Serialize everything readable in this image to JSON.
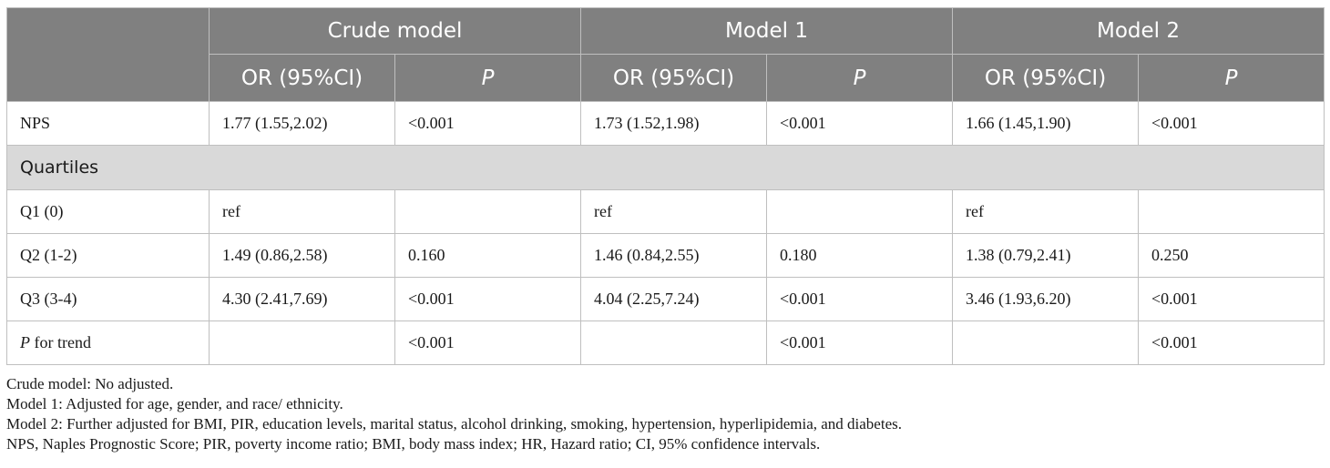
{
  "header": {
    "groups": [
      "Crude model",
      "Model 1",
      "Model 2"
    ],
    "sub": [
      "OR (95%CI)",
      "P",
      "OR (95%CI)",
      "P",
      "OR (95%CI)",
      "P"
    ]
  },
  "rows": {
    "nps": {
      "label": "NPS",
      "cells": [
        "1.77 (1.55,2.02)",
        "<0.001",
        "1.73 (1.52,1.98)",
        "<0.001",
        "1.66 (1.45,1.90)",
        "<0.001"
      ]
    },
    "quartiles": {
      "label": "Quartiles"
    },
    "q1": {
      "label": "Q1 (0)",
      "cells": [
        "ref",
        "",
        "ref",
        "",
        "ref",
        ""
      ]
    },
    "q2": {
      "label": "Q2 (1-2)",
      "cells": [
        "1.49 (0.86,2.58)",
        "0.160",
        "1.46 (0.84,2.55)",
        "0.180",
        "1.38 (0.79,2.41)",
        "0.250"
      ]
    },
    "q3": {
      "label": "Q3 (3-4)",
      "cells": [
        "4.30 (2.41,7.69)",
        "<0.001",
        "4.04 (2.25,7.24)",
        "<0.001",
        "3.46 (1.93,6.20)",
        "<0.001"
      ]
    },
    "trend": {
      "label_p": "P",
      "label_rest": " for trend",
      "cells": [
        "",
        "<0.001",
        "",
        "<0.001",
        "",
        "<0.001"
      ]
    }
  },
  "notes": [
    "Crude model: No adjusted.",
    "Model 1: Adjusted for age, gender, and race/ ethnicity.",
    "Model 2: Further adjusted for BMI, PIR, education levels, marital status, alcohol drinking, smoking, hypertension, hyperlipidemia, and diabetes.",
    "NPS, Naples Prognostic Score; PIR, poverty income ratio; BMI, body mass index; HR, Hazard ratio; CI, 95% confidence intervals."
  ]
}
